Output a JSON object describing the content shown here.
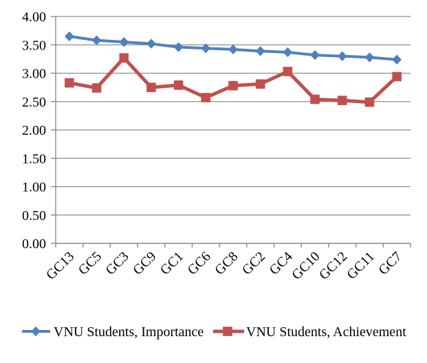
{
  "chart_data": {
    "type": "line",
    "title": "",
    "xlabel": "",
    "ylabel": "",
    "categories": [
      "GC13",
      "GC5",
      "GC3",
      "GC9",
      "GC1",
      "GC6",
      "GC8",
      "GC2",
      "GC4",
      "GC10",
      "GC12",
      "GC11",
      "GC7"
    ],
    "series": [
      {
        "name": "VNU Students, Importance",
        "marker": "diamond",
        "color": "#4F81BD",
        "values": [
          3.65,
          3.58,
          3.55,
          3.52,
          3.46,
          3.44,
          3.42,
          3.39,
          3.37,
          3.32,
          3.3,
          3.28,
          3.24
        ]
      },
      {
        "name": "VNU Students, Achievement",
        "marker": "square",
        "color": "#C0504D",
        "values": [
          2.83,
          2.74,
          3.27,
          2.75,
          2.79,
          2.57,
          2.78,
          2.81,
          3.03,
          2.54,
          2.52,
          2.49,
          2.94
        ]
      }
    ],
    "ylim": [
      0,
      4
    ],
    "ytick_step": 0.5,
    "ytick_labels": [
      "0.00",
      "0.50",
      "1.00",
      "1.50",
      "2.00",
      "2.50",
      "3.00",
      "3.50",
      "4.00"
    ],
    "grid": true,
    "legend_position": "bottom",
    "colors": {
      "gridline": "#8C8C8C",
      "axis": "#808080",
      "text": "#000000",
      "background": "#FFFFFF"
    }
  }
}
